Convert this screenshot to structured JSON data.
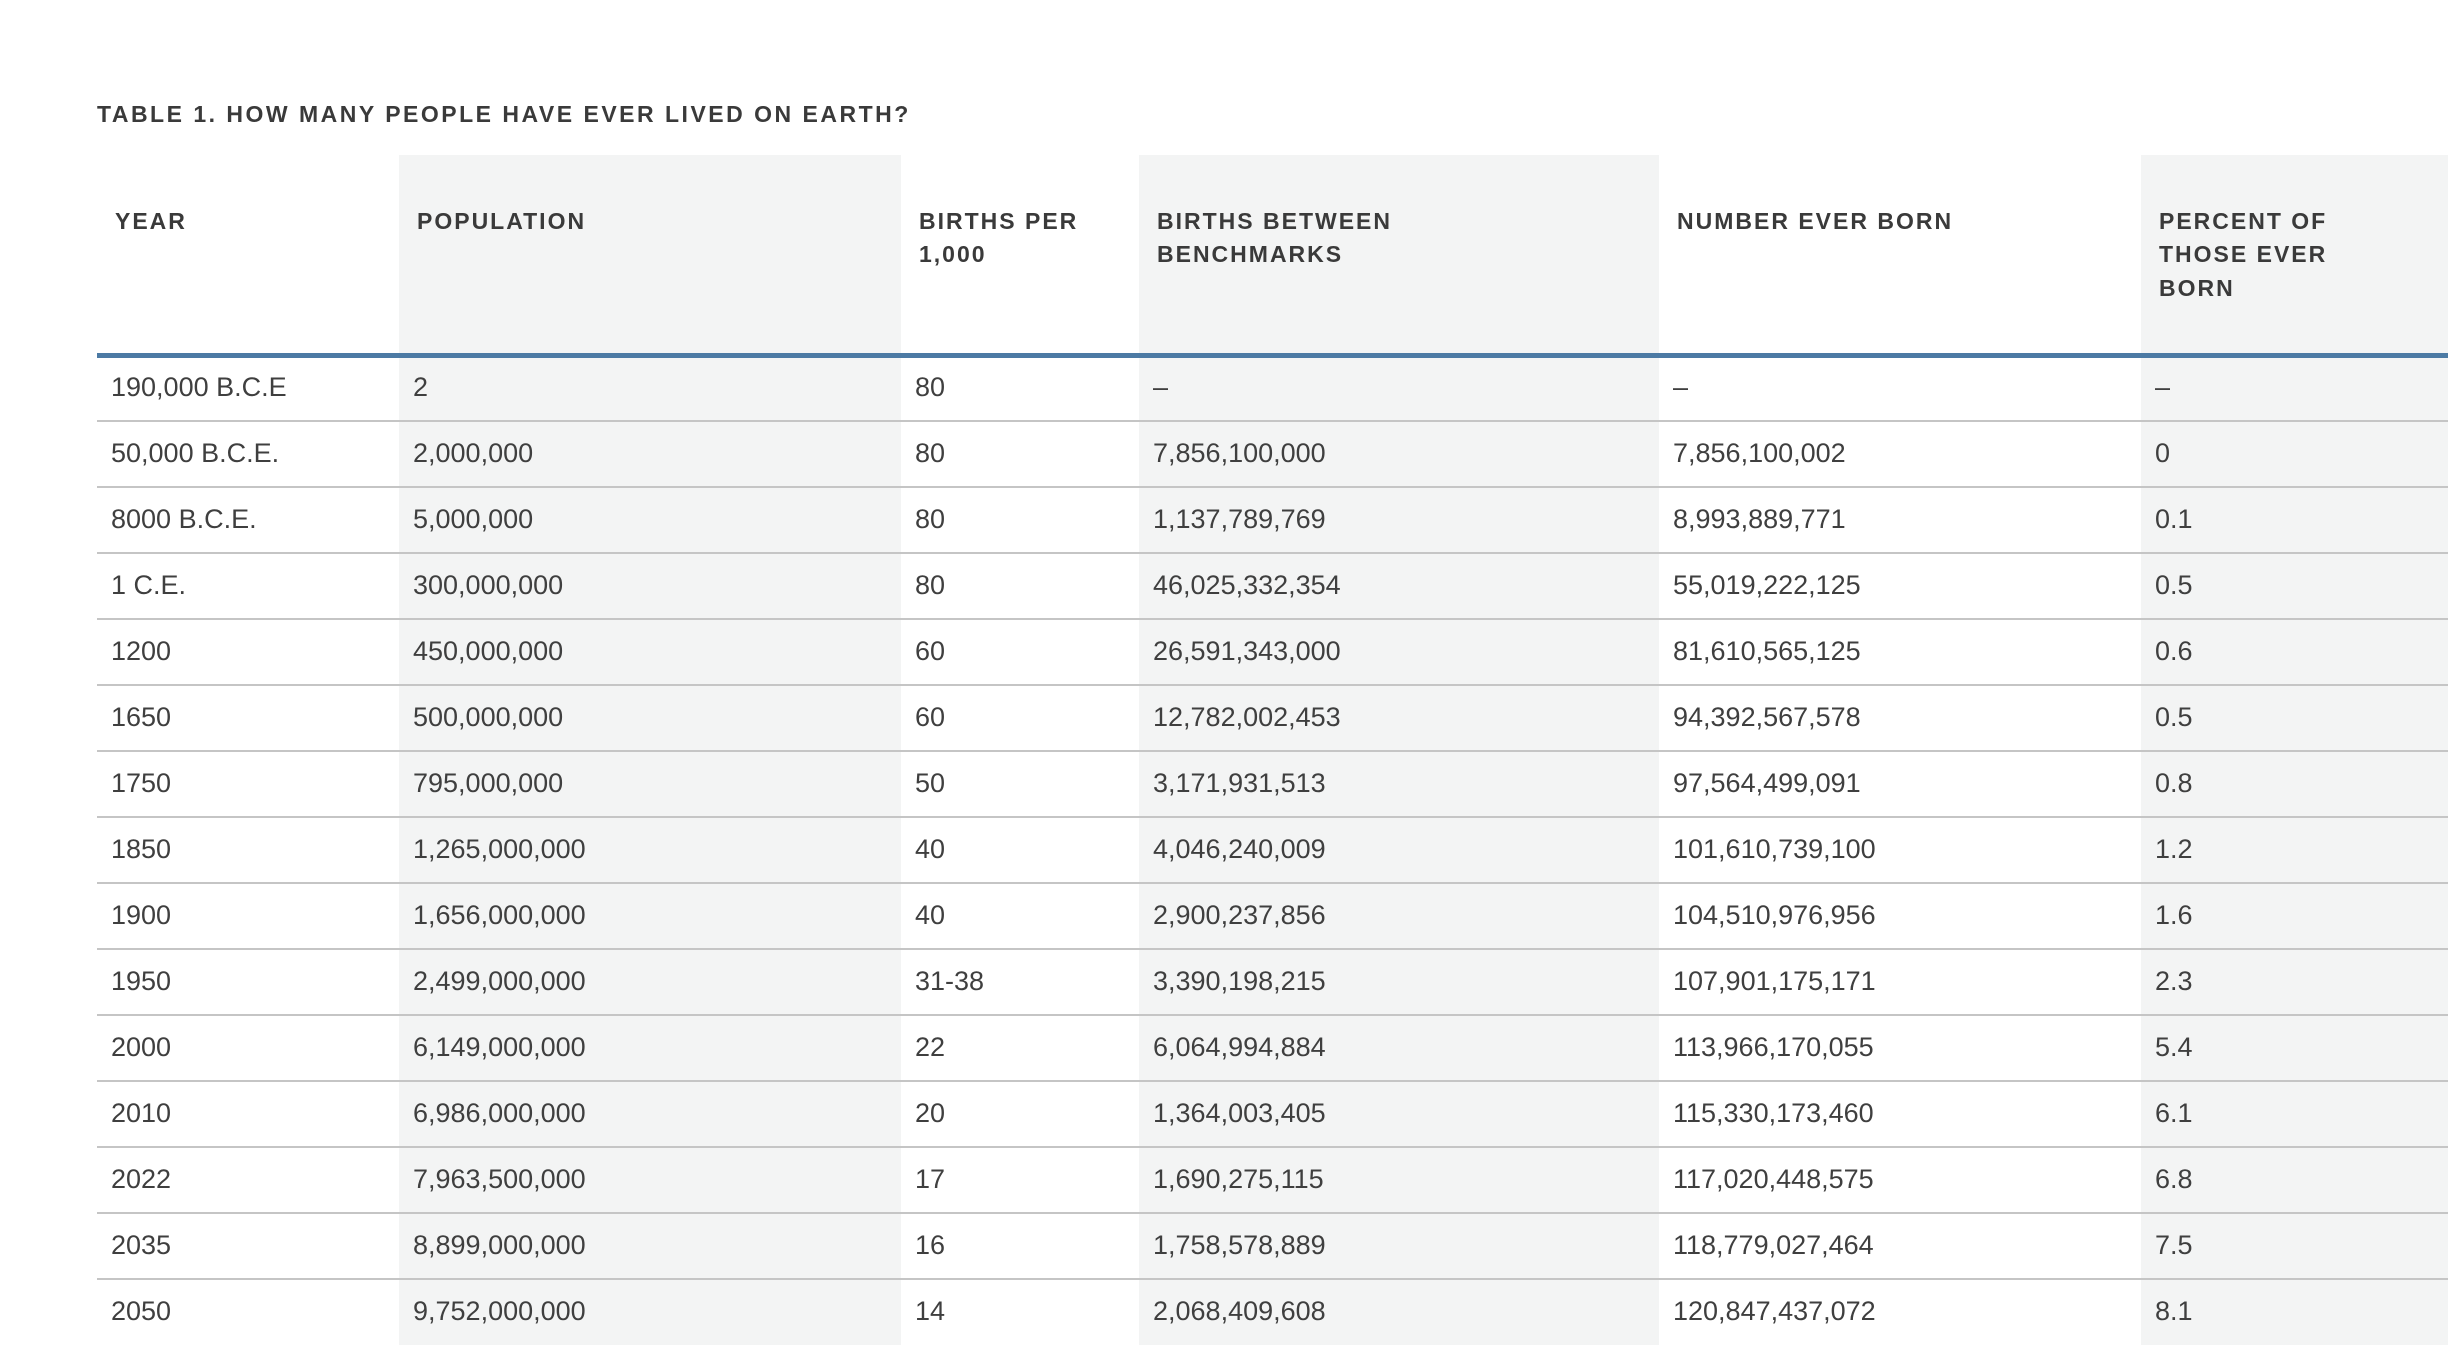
{
  "title": "TABLE 1. HOW MANY PEOPLE HAVE EVER LIVED ON EARTH?",
  "table_header": {
    "labels": [
      "YEAR",
      "POPULATION",
      "BIRTHS PER\n1,000",
      "BIRTHS BETWEEN\nBENCHMARKS",
      "NUMBER EVER BORN",
      "PERCENT OF\nTHOSE EVER\nBORN"
    ]
  },
  "chart_data": {
    "type": "table",
    "title": "TABLE 1. HOW MANY PEOPLE HAVE EVER LIVED ON EARTH?",
    "columns": [
      "YEAR",
      "POPULATION",
      "BIRTHS PER 1,000",
      "BIRTHS BETWEEN BENCHMARKS",
      "NUMBER EVER BORN",
      "PERCENT OF THOSE EVER BORN"
    ],
    "rows": [
      [
        "190,000 B.C.E",
        "2",
        "80",
        "–",
        "–",
        "–"
      ],
      [
        "50,000 B.C.E.",
        "2,000,000",
        "80",
        "7,856,100,000",
        "7,856,100,002",
        "0"
      ],
      [
        "8000 B.C.E.",
        "5,000,000",
        "80",
        "1,137,789,769",
        "8,993,889,771",
        "0.1"
      ],
      [
        "1 C.E.",
        "300,000,000",
        "80",
        "46,025,332,354",
        "55,019,222,125",
        "0.5"
      ],
      [
        "1200",
        "450,000,000",
        "60",
        "26,591,343,000",
        "81,610,565,125",
        "0.6"
      ],
      [
        "1650",
        "500,000,000",
        "60",
        "12,782,002,453",
        "94,392,567,578",
        "0.5"
      ],
      [
        "1750",
        "795,000,000",
        "50",
        "3,171,931,513",
        "97,564,499,091",
        "0.8"
      ],
      [
        "1850",
        "1,265,000,000",
        "40",
        "4,046,240,009",
        "101,610,739,100",
        "1.2"
      ],
      [
        "1900",
        "1,656,000,000",
        "40",
        "2,900,237,856",
        "104,510,976,956",
        "1.6"
      ],
      [
        "1950",
        "2,499,000,000",
        "31-38",
        "3,390,198,215",
        "107,901,175,171",
        "2.3"
      ],
      [
        "2000",
        "6,149,000,000",
        "22",
        "6,064,994,884",
        "113,966,170,055",
        "5.4"
      ],
      [
        "2010",
        "6,986,000,000",
        "20",
        "1,364,003,405",
        "115,330,173,460",
        "6.1"
      ],
      [
        "2022",
        "7,963,500,000",
        "17",
        "1,690,275,115",
        "117,020,448,575",
        "6.8"
      ],
      [
        "2035",
        "8,899,000,000",
        "16",
        "1,758,578,889",
        "118,779,027,464",
        "7.5"
      ],
      [
        "2050",
        "9,752,000,000",
        "14",
        "2,068,409,608",
        "120,847,437,072",
        "8.1"
      ]
    ],
    "layout_hints": {
      "striped_columns": [
        1,
        3,
        5
      ],
      "header_rule_position": "below-header",
      "grid": "horizontal-only"
    }
  },
  "colors": {
    "accent_blue": "#4c7aa4",
    "stripe_gray": "#f3f4f4",
    "row_separator": "#c5c5c5",
    "text": "#3f3f3f",
    "text_strong": "#3a3a3a",
    "background": "#ffffff"
  }
}
